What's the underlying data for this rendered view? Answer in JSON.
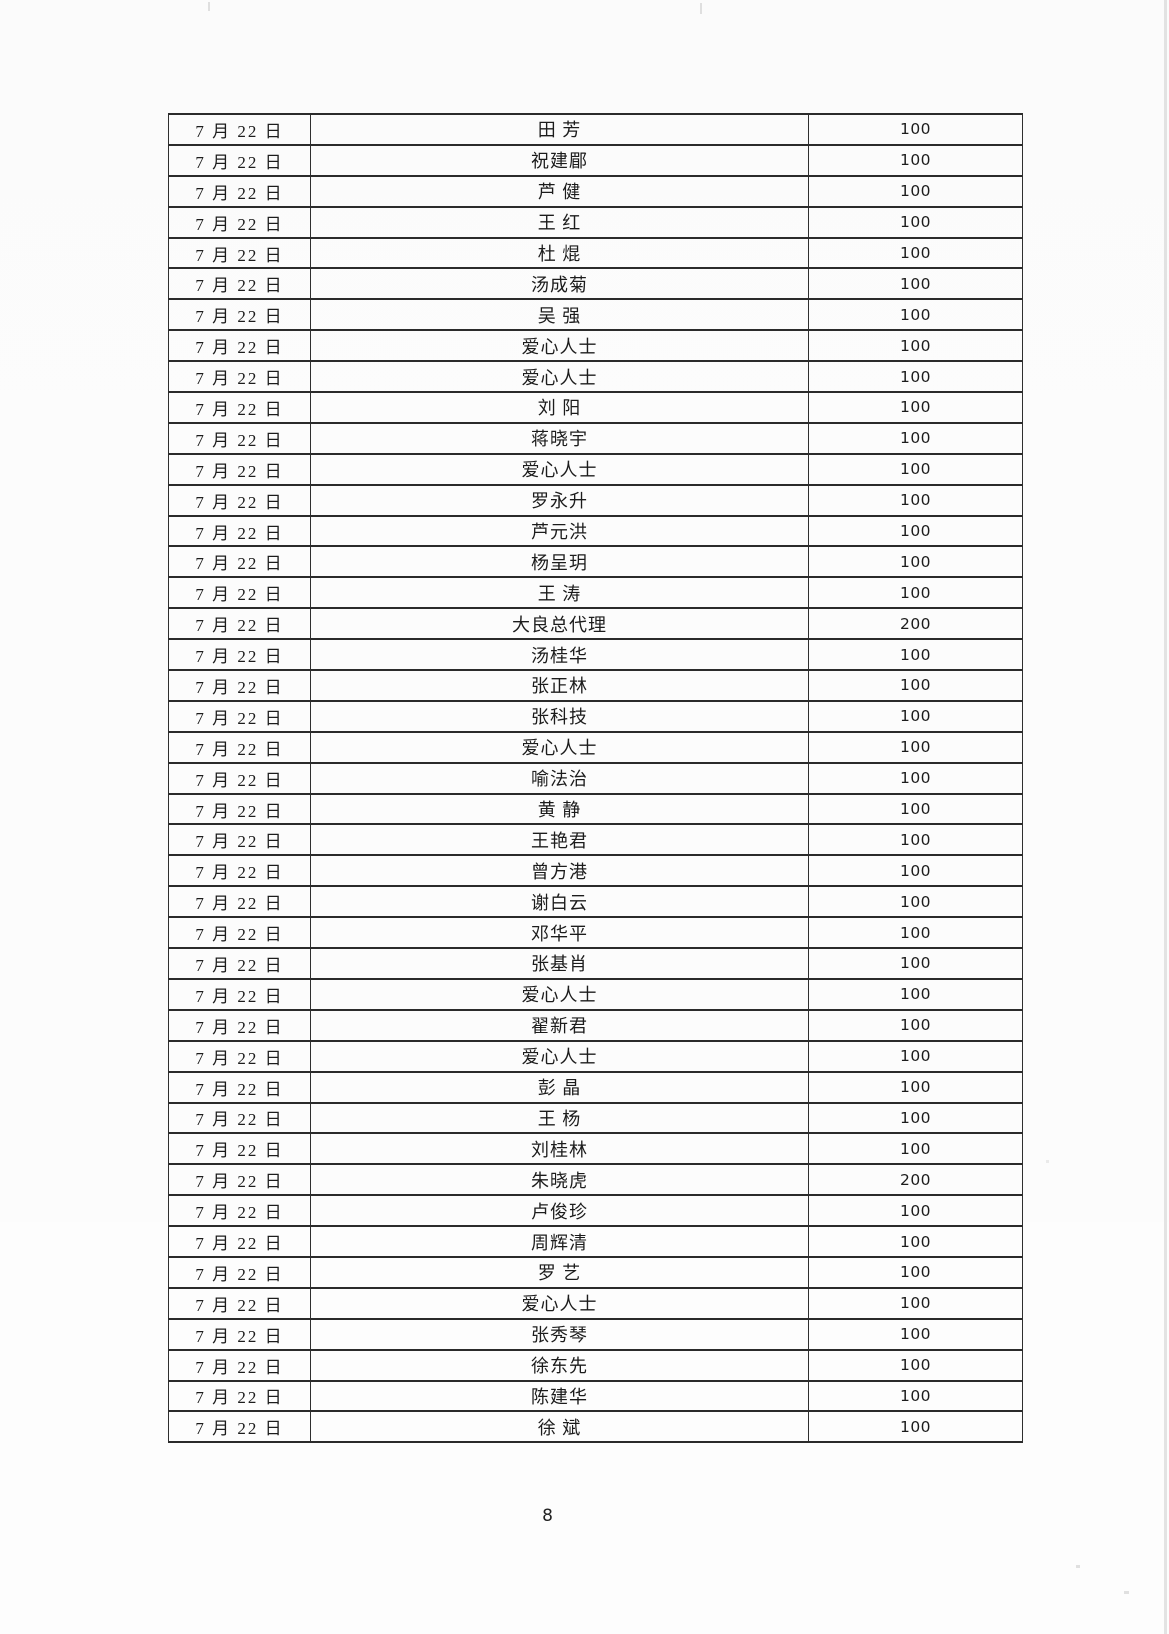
{
  "page": {
    "number": "8"
  },
  "table": {
    "columns": {
      "date": "date",
      "name": "name",
      "amount": "amount"
    },
    "rows": [
      {
        "date": "7 月 22 日",
        "name": "田  芳",
        "amount": "100"
      },
      {
        "date": "7 月 22 日",
        "name": "祝建郿",
        "amount": "100"
      },
      {
        "date": "7 月 22 日",
        "name": "芦  健",
        "amount": "100"
      },
      {
        "date": "7 月 22 日",
        "name": "王  红",
        "amount": "100"
      },
      {
        "date": "7 月 22 日",
        "name": "杜  焜",
        "amount": "100"
      },
      {
        "date": "7 月 22 日",
        "name": "汤成菊",
        "amount": "100"
      },
      {
        "date": "7 月 22 日",
        "name": "吴  强",
        "amount": "100"
      },
      {
        "date": "7 月 22 日",
        "name": "爱心人士",
        "amount": "100"
      },
      {
        "date": "7 月 22 日",
        "name": "爱心人士",
        "amount": "100"
      },
      {
        "date": "7 月 22 日",
        "name": "刘  阳",
        "amount": "100"
      },
      {
        "date": "7 月 22 日",
        "name": "蒋晓宇",
        "amount": "100"
      },
      {
        "date": "7 月 22 日",
        "name": "爱心人士",
        "amount": "100"
      },
      {
        "date": "7 月 22 日",
        "name": "罗永升",
        "amount": "100"
      },
      {
        "date": "7 月 22 日",
        "name": "芦元洪",
        "amount": "100"
      },
      {
        "date": "7 月 22 日",
        "name": "杨呈玥",
        "amount": "100"
      },
      {
        "date": "7 月 22 日",
        "name": "王  涛",
        "amount": "100"
      },
      {
        "date": "7 月 22 日",
        "name": "大良总代理",
        "amount": "200"
      },
      {
        "date": "7 月 22 日",
        "name": "汤桂华",
        "amount": "100"
      },
      {
        "date": "7 月 22 日",
        "name": "张正林",
        "amount": "100"
      },
      {
        "date": "7 月 22 日",
        "name": "张科技",
        "amount": "100"
      },
      {
        "date": "7 月 22 日",
        "name": "爱心人士",
        "amount": "100"
      },
      {
        "date": "7 月 22 日",
        "name": "喻法治",
        "amount": "100"
      },
      {
        "date": "7 月 22 日",
        "name": "黄  静",
        "amount": "100"
      },
      {
        "date": "7 月 22 日",
        "name": "王艳君",
        "amount": "100"
      },
      {
        "date": "7 月 22 日",
        "name": "曾方港",
        "amount": "100"
      },
      {
        "date": "7 月 22 日",
        "name": "谢白云",
        "amount": "100"
      },
      {
        "date": "7 月 22 日",
        "name": "邓华平",
        "amount": "100"
      },
      {
        "date": "7 月 22 日",
        "name": "张基肖",
        "amount": "100"
      },
      {
        "date": "7 月 22 日",
        "name": "爱心人士",
        "amount": "100"
      },
      {
        "date": "7 月 22 日",
        "name": "翟新君",
        "amount": "100"
      },
      {
        "date": "7 月 22 日",
        "name": "爱心人士",
        "amount": "100"
      },
      {
        "date": "7 月 22 日",
        "name": "彭  晶",
        "amount": "100"
      },
      {
        "date": "7 月 22 日",
        "name": "王  杨",
        "amount": "100"
      },
      {
        "date": "7 月 22 日",
        "name": "刘桂林",
        "amount": "100"
      },
      {
        "date": "7 月 22 日",
        "name": "朱晓虎",
        "amount": "200"
      },
      {
        "date": "7 月 22 日",
        "name": "卢俊珍",
        "amount": "100"
      },
      {
        "date": "7 月 22 日",
        "name": "周辉清",
        "amount": "100"
      },
      {
        "date": "7 月 22 日",
        "name": "罗  艺",
        "amount": "100"
      },
      {
        "date": "7 月 22 日",
        "name": "爱心人士",
        "amount": "100"
      },
      {
        "date": "7 月 22 日",
        "name": "张秀琴",
        "amount": "100"
      },
      {
        "date": "7 月 22 日",
        "name": "徐东先",
        "amount": "100"
      },
      {
        "date": "7 月 22 日",
        "name": "陈建华",
        "amount": "100"
      },
      {
        "date": "7 月 22 日",
        "name": "徐  斌",
        "amount": "100"
      }
    ]
  }
}
